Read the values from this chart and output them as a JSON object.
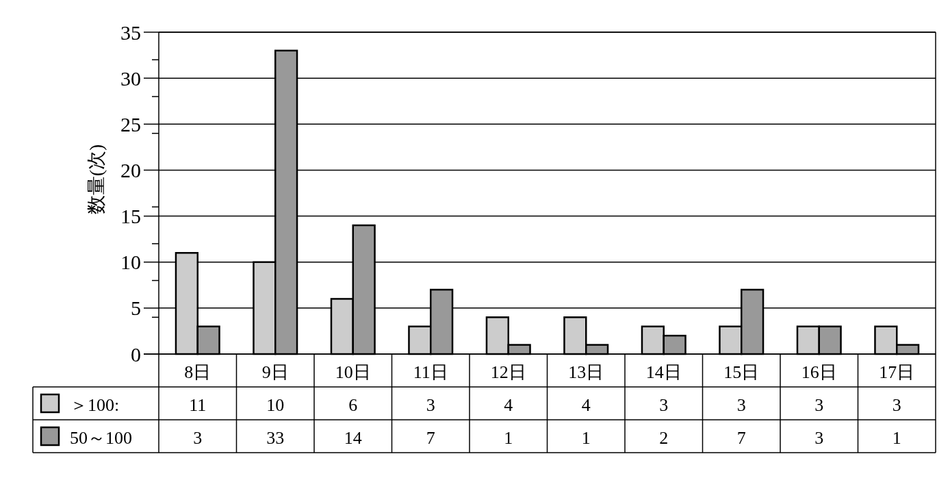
{
  "chart_data": {
    "type": "bar",
    "ylabel": "数量(次)",
    "categories": [
      "8日",
      "9日",
      "10日",
      "11日",
      "12日",
      "13日",
      "14日",
      "15日",
      "16日",
      "17日"
    ],
    "series": [
      {
        "name": "＞100:",
        "color": "#cccccc",
        "values": [
          11,
          10,
          6,
          3,
          4,
          4,
          3,
          3,
          3,
          3
        ]
      },
      {
        "name": "50～100",
        "color": "#999999",
        "values": [
          3,
          33,
          14,
          7,
          1,
          1,
          2,
          7,
          3,
          1
        ]
      }
    ],
    "ylim": [
      0,
      35
    ],
    "yticks": [
      0,
      {
        "value": 4,
        "label": null
      },
      5,
      {
        "value": 8,
        "label": null
      },
      10,
      {
        "value": 12,
        "label": null
      },
      15,
      {
        "value": 16,
        "label": null
      },
      20,
      {
        "value": 24,
        "label": null
      },
      25,
      {
        "value": 28,
        "label": null
      },
      30,
      {
        "value": 32,
        "label": null
      },
      35
    ],
    "grid": "y",
    "legend": "bottom",
    "data_labels": true
  }
}
